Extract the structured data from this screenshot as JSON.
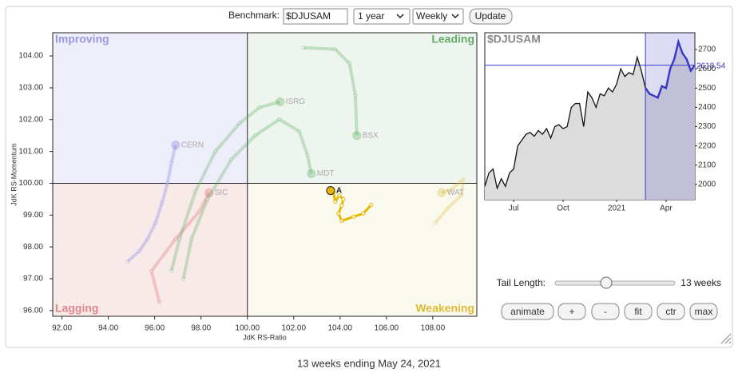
{
  "controls": {
    "benchmark_label": "Benchmark:",
    "benchmark": "$DJUSAM",
    "period": "1 year",
    "frequency": "Weekly",
    "update": "Update",
    "tail_length_label": "Tail Length:",
    "tail_length": {
      "value": 13,
      "label": "13 weeks"
    },
    "buttons": [
      "animate",
      "+",
      "-",
      "fit",
      "ctr",
      "max"
    ]
  },
  "chart_data": [
    {
      "type": "rrg",
      "xlabel": "JdK RS-Ratio",
      "ylabel": "JdK RS-Momentum",
      "quadrants": {
        "improving": "Improving",
        "leading": "Leading",
        "lagging": "Lagging",
        "weakening": "Weakening"
      },
      "center": 100,
      "xlim": [
        91.6,
        109.9
      ],
      "ylim": [
        95.82,
        104.73
      ],
      "xticks": [
        {
          "value": 92,
          "label": "92.00"
        },
        {
          "value": 94,
          "label": "94.00"
        },
        {
          "value": 96,
          "label": "96.00"
        },
        {
          "value": 98,
          "label": "98.00"
        },
        {
          "value": 100,
          "label": "100.00"
        },
        {
          "value": 102,
          "label": "102.00"
        },
        {
          "value": 104,
          "label": "104.00"
        },
        {
          "value": 106,
          "label": "106.00"
        },
        {
          "value": 108,
          "label": "108.00"
        }
      ],
      "yticks": [
        {
          "value": 96,
          "label": "96.00"
        },
        {
          "value": 97,
          "label": "97.00"
        },
        {
          "value": 98,
          "label": "98.00"
        },
        {
          "value": 99,
          "label": "99.00"
        },
        {
          "value": 100,
          "label": "100.00"
        },
        {
          "value": 101,
          "label": "101.00"
        },
        {
          "value": 102,
          "label": "102.00"
        },
        {
          "value": 103,
          "label": "103.00"
        },
        {
          "value": 104,
          "label": "104.00"
        }
      ],
      "series": [
        {
          "name": "CERN",
          "color": "#7777dd",
          "highlight": false,
          "x": [
            94.83,
            95.34,
            95.69,
            96.03,
            96.31,
            96.55,
            96.72,
            96.9
          ],
          "y": [
            97.54,
            97.87,
            98.25,
            98.75,
            99.37,
            100,
            100.63,
            101.2
          ]
        },
        {
          "name": "SIC",
          "color": "#dd6666",
          "highlight": false,
          "x": [
            96.21,
            95.86,
            96.9,
            97.93,
            98.34
          ],
          "y": [
            96.24,
            97.24,
            98.25,
            99.12,
            99.7
          ]
        },
        {
          "name": "ISRG",
          "color": "#55aa55",
          "highlight": false,
          "x": [
            96.72,
            97.07,
            97.76,
            98.62,
            99.66,
            100.52,
            101.41
          ],
          "y": [
            97.24,
            98.25,
            99.75,
            101.0,
            101.88,
            102.38,
            102.56
          ]
        },
        {
          "name": "MDT",
          "color": "#55aa55",
          "highlight": false,
          "x": [
            97.24,
            97.59,
            98.28,
            99.31,
            100.34,
            101.38,
            102.24,
            102.59,
            102.76
          ],
          "y": [
            96.99,
            98.25,
            99.5,
            100.75,
            101.5,
            102.01,
            101.63,
            100.88,
            100.3
          ]
        },
        {
          "name": "BSX",
          "color": "#55aa55",
          "highlight": false,
          "x": [
            102.41,
            103.79,
            104.41,
            104.66,
            104.72
          ],
          "y": [
            104.26,
            104.21,
            103.76,
            102.76,
            101.5
          ]
        },
        {
          "name": "WAT",
          "color": "#ddbb33",
          "highlight": false,
          "x": [
            108.1,
            108.62,
            109.24,
            109.31,
            108.79,
            108.38
          ],
          "y": [
            98.75,
            99.2,
            99.62,
            100.13,
            99.8,
            99.7
          ]
        },
        {
          "name": "A",
          "color": "#e6b800",
          "highlight": true,
          "x": [
            105.34,
            105.0,
            104.59,
            104.07,
            103.93,
            104.07,
            104.14,
            103.97,
            103.79,
            103.72,
            103.59
          ],
          "y": [
            99.32,
            99.05,
            98.95,
            98.82,
            99.05,
            99.3,
            99.5,
            99.62,
            99.42,
            99.7,
            99.77
          ]
        }
      ]
    },
    {
      "type": "line",
      "title": "$DJUSAM",
      "color": "#111111",
      "tail_color": "#3b3bc8",
      "values": [
        1990,
        2060,
        2080,
        1980,
        2030,
        1990,
        2060,
        2080,
        2200,
        2230,
        2260,
        2270,
        2250,
        2280,
        2260,
        2290,
        2240,
        2300,
        2310,
        2290,
        2300,
        2400,
        2420,
        2420,
        2300,
        2480,
        2450,
        2400,
        2470,
        2460,
        2500,
        2480,
        2520,
        2600,
        2560,
        2580,
        2570,
        2660,
        2590,
        2500,
        2470,
        2460,
        2450,
        2510,
        2500,
        2600,
        2650,
        2740,
        2680,
        2650,
        2590,
        2618.54
      ],
      "current": 2618.54,
      "xlim": [
        0,
        51
      ],
      "ylim": [
        1921,
        2787
      ],
      "xticks": [
        {
          "value": 7,
          "label": "Jul"
        },
        {
          "value": 19,
          "label": "Oct"
        },
        {
          "value": 32,
          "label": "2021"
        },
        {
          "value": 44,
          "label": "Apr"
        }
      ],
      "yticks": [
        2000,
        2100,
        2200,
        2300,
        2400,
        2500,
        2600,
        2700
      ]
    }
  ],
  "footer": "13 weeks ending May 24, 2021"
}
